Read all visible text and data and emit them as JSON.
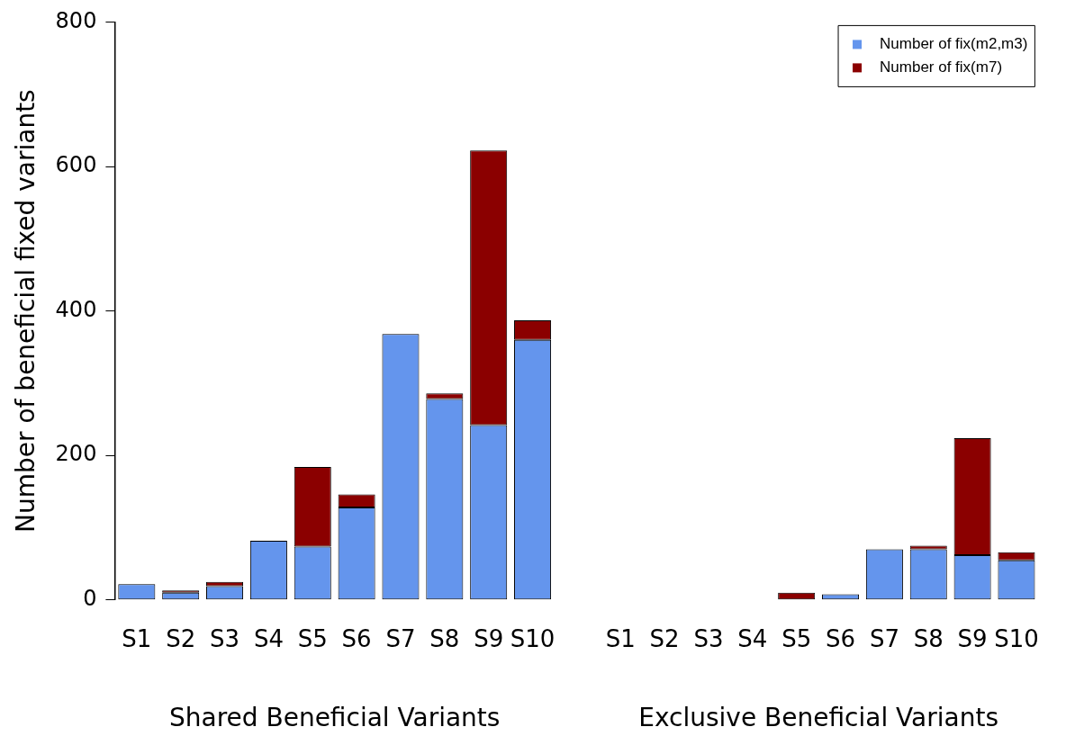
{
  "chart_data": {
    "type": "bar",
    "stacked": true,
    "ylabel": "Number of beneficial fixed variants",
    "categories": [
      "S1",
      "S2",
      "S3",
      "S4",
      "S5",
      "S6",
      "S7",
      "S8",
      "S9",
      "S10",
      null,
      "S1",
      "S2",
      "S3",
      "S4",
      "S5",
      "S6",
      "S7",
      "S8",
      "S9",
      "S10"
    ],
    "series": [
      {
        "name": "Number of fix(m2,m3)",
        "color": "#6495ed",
        "values": [
          22,
          10,
          19,
          82,
          74,
          128,
          368,
          278,
          242,
          360,
          null,
          0,
          0,
          0,
          0,
          0,
          8,
          70,
          70,
          62,
          55
        ]
      },
      {
        "name": "Number of fix(m7)",
        "color": "#8b0000",
        "values": [
          0,
          3,
          6,
          0,
          110,
          18,
          0,
          8,
          380,
          27,
          null,
          0,
          0,
          0,
          0,
          10,
          0,
          0,
          5,
          162,
          11
        ]
      }
    ],
    "ylim": [
      0,
      800
    ],
    "yticks": [
      0,
      200,
      400,
      600,
      800
    ],
    "grid": false,
    "legend": "top right",
    "annotations": [
      "Shared Beneficial Variants",
      "Exclusive Beneficial Variants"
    ]
  }
}
